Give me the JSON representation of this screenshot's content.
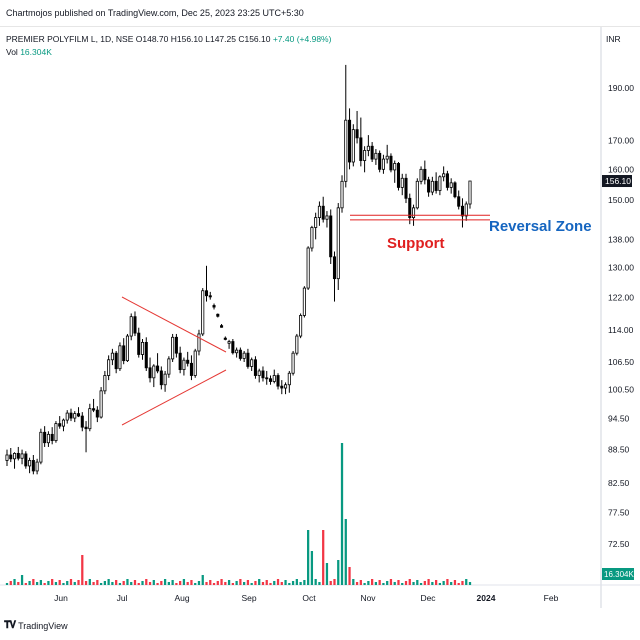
{
  "header": {
    "publisher": "Chartmojos published on TradingView.com, Dec 25, 2023 23:25 UTC+5:30",
    "symbol_line": "PREMIER POLYFILM L, 1D, NSE",
    "ohlc": "O148.70  H156.10  L147.25  C156.10",
    "change": "+7.40 (+4.98%)",
    "vol_label": "Vol",
    "vol_value": "16.304K",
    "currency": "INR"
  },
  "footer": {
    "logo": "TradingView"
  },
  "colors": {
    "up": "#089981",
    "down": "#f23645",
    "vol_up": "#089981",
    "vol_down": "#f23645",
    "support": "#e02020",
    "zone": "#1565c0",
    "triangle": "#e53935"
  },
  "chart_data": {
    "type": "candlestick",
    "price_axis": {
      "scale": "log",
      "ticks": [
        72.5,
        77.5,
        82.5,
        88.5,
        94.5,
        100.5,
        106.5,
        114.0,
        122.0,
        130.0,
        138.0,
        150.0,
        160.0,
        170.0,
        190.0
      ],
      "current_price": "156.10",
      "volume_badge": "16.304K"
    },
    "time_axis": {
      "ticks": [
        "Jun",
        "Jul",
        "Aug",
        "Sep",
        "Oct",
        "Nov",
        "Dec",
        "2024",
        "Feb"
      ]
    },
    "annotations": {
      "support_label": "Support",
      "zone_label": "Reversal Zone"
    },
    "candles": [
      [
        86.5,
        88.5,
        85.5,
        87.5
      ],
      [
        87.5,
        88.8,
        86.2,
        86.8
      ],
      [
        86.8,
        88.0,
        85.0,
        87.8
      ],
      [
        87.8,
        89.0,
        86.5,
        86.9
      ],
      [
        86.9,
        88.5,
        85.8,
        87.7
      ],
      [
        87.7,
        88.2,
        85.0,
        85.5
      ],
      [
        85.5,
        87.0,
        84.2,
        86.5
      ],
      [
        86.5,
        87.5,
        84.0,
        84.6
      ],
      [
        84.6,
        86.8,
        84.0,
        86.2
      ],
      [
        86.2,
        92.5,
        85.8,
        91.8
      ],
      [
        91.8,
        93.0,
        89.0,
        89.8
      ],
      [
        89.8,
        92.0,
        89.0,
        91.4
      ],
      [
        91.4,
        92.8,
        89.5,
        90.2
      ],
      [
        90.2,
        94.0,
        89.8,
        93.5
      ],
      [
        93.5,
        95.0,
        92.5,
        93.0
      ],
      [
        93.0,
        94.5,
        92.0,
        94.2
      ],
      [
        94.2,
        96.2,
        93.5,
        95.6
      ],
      [
        95.6,
        96.5,
        94.0,
        94.6
      ],
      [
        94.6,
        96.0,
        93.8,
        95.5
      ],
      [
        95.5,
        96.8,
        94.8,
        95.0
      ],
      [
        95.0,
        95.8,
        92.0,
        92.8
      ],
      [
        92.8,
        94.0,
        88.0,
        92.5
      ],
      [
        92.5,
        97.5,
        92.0,
        96.5
      ],
      [
        96.5,
        98.5,
        95.8,
        96.2
      ],
      [
        96.2,
        97.0,
        93.8,
        94.8
      ],
      [
        94.8,
        101.0,
        94.5,
        100.2
      ],
      [
        100.2,
        104.5,
        99.5,
        103.5
      ],
      [
        103.5,
        108.0,
        102.5,
        107.0
      ],
      [
        107.0,
        109.5,
        105.8,
        108.5
      ],
      [
        108.5,
        109.0,
        104.0,
        105.0
      ],
      [
        105.0,
        111.0,
        104.5,
        110.2
      ],
      [
        110.2,
        112.0,
        106.0,
        106.8
      ],
      [
        106.8,
        113.0,
        106.5,
        112.5
      ],
      [
        112.5,
        118.0,
        111.5,
        117.2
      ],
      [
        117.2,
        118.5,
        112.5,
        113.2
      ],
      [
        113.2,
        114.5,
        107.5,
        108.2
      ],
      [
        108.2,
        111.8,
        107.0,
        111.0
      ],
      [
        111.0,
        112.2,
        104.5,
        105.2
      ],
      [
        105.2,
        107.5,
        102.0,
        103.0
      ],
      [
        103.0,
        106.0,
        101.0,
        105.6
      ],
      [
        105.6,
        108.5,
        104.0,
        104.5
      ],
      [
        104.5,
        105.5,
        100.5,
        101.5
      ],
      [
        101.5,
        104.5,
        100.0,
        103.8
      ],
      [
        103.8,
        107.8,
        103.0,
        107.2
      ],
      [
        107.2,
        113.0,
        106.5,
        112.2
      ],
      [
        112.2,
        113.0,
        107.5,
        108.5
      ],
      [
        108.5,
        110.0,
        104.0,
        104.8
      ],
      [
        104.8,
        107.5,
        103.5,
        106.9
      ],
      [
        106.9,
        108.8,
        105.5,
        106.2
      ],
      [
        106.2,
        108.0,
        102.5,
        103.5
      ],
      [
        103.5,
        109.5,
        103.0,
        109.0
      ],
      [
        109.0,
        114.0,
        108.0,
        113.0
      ],
      [
        113.0,
        124.5,
        112.5,
        123.8
      ],
      [
        123.8,
        130.5,
        121.0,
        122.5
      ],
      [
        122.5,
        123.5,
        121.5,
        122.2
      ],
      [
        120.0,
        120.5,
        119.0,
        119.6
      ],
      [
        117.8,
        118.0,
        117.0,
        117.3
      ],
      [
        115.0,
        115.4,
        114.5,
        114.6
      ],
      [
        112.0,
        112.4,
        111.5,
        111.7
      ],
      [
        110.8,
        111.6,
        109.5,
        111.2
      ],
      [
        111.2,
        111.8,
        108.2,
        108.6
      ],
      [
        108.6,
        109.8,
        107.5,
        109.2
      ],
      [
        109.2,
        109.8,
        106.8,
        107.3
      ],
      [
        107.3,
        109.0,
        106.5,
        108.5
      ],
      [
        108.5,
        109.5,
        105.0,
        105.5
      ],
      [
        105.5,
        107.5,
        104.5,
        107.0
      ],
      [
        107.0,
        107.8,
        102.8,
        103.5
      ],
      [
        103.5,
        105.0,
        102.0,
        104.5
      ],
      [
        104.5,
        105.5,
        102.2,
        103.0
      ],
      [
        103.0,
        104.5,
        101.5,
        102.8
      ],
      [
        102.8,
        103.5,
        101.5,
        102.2
      ],
      [
        102.2,
        104.8,
        101.8,
        103.5
      ],
      [
        103.5,
        104.0,
        100.5,
        101.2
      ],
      [
        101.2,
        102.5,
        99.5,
        100.8
      ],
      [
        100.8,
        102.0,
        99.5,
        101.5
      ],
      [
        101.5,
        104.5,
        99.8,
        104.0
      ],
      [
        104.0,
        109.0,
        103.5,
        108.5
      ],
      [
        108.5,
        113.0,
        108.0,
        112.5
      ],
      [
        112.5,
        118.0,
        112.0,
        117.5
      ],
      [
        117.5,
        125.0,
        117.0,
        124.5
      ],
      [
        124.5,
        136.0,
        124.0,
        135.5
      ],
      [
        135.5,
        142.0,
        134.5,
        141.5
      ],
      [
        141.5,
        146.0,
        138.0,
        144.5
      ],
      [
        144.5,
        149.5,
        142.0,
        148.0
      ],
      [
        148.0,
        151.0,
        143.0,
        144.0
      ],
      [
        144.0,
        146.5,
        141.5,
        145.0
      ],
      [
        145.0,
        147.0,
        131.0,
        133.0
      ],
      [
        133.0,
        134.5,
        121.0,
        127.0
      ],
      [
        127.0,
        149.0,
        124.0,
        147.5
      ],
      [
        147.5,
        158.0,
        146.0,
        156.0
      ],
      [
        156.0,
        199.5,
        154.0,
        177.5
      ],
      [
        177.5,
        182.0,
        160.0,
        162.5
      ],
      [
        162.5,
        176.0,
        161.0,
        174.0
      ],
      [
        174.0,
        181.0,
        169.0,
        171.0
      ],
      [
        171.0,
        178.5,
        161.0,
        163.0
      ],
      [
        163.0,
        168.0,
        159.0,
        166.5
      ],
      [
        166.5,
        172.0,
        164.5,
        168.0
      ],
      [
        168.0,
        169.5,
        162.5,
        163.5
      ],
      [
        163.5,
        167.0,
        161.5,
        165.5
      ],
      [
        165.5,
        166.5,
        159.0,
        160.0
      ],
      [
        160.0,
        165.0,
        158.5,
        163.5
      ],
      [
        163.5,
        168.5,
        162.0,
        164.5
      ],
      [
        164.5,
        165.5,
        159.0,
        159.8
      ],
      [
        159.8,
        163.0,
        155.5,
        162.0
      ],
      [
        162.0,
        162.5,
        153.0,
        154.0
      ],
      [
        154.0,
        158.5,
        151.5,
        157.0
      ],
      [
        157.0,
        158.5,
        149.0,
        150.5
      ],
      [
        150.5,
        152.0,
        142.5,
        144.5
      ],
      [
        144.5,
        148.5,
        142.0,
        147.5
      ],
      [
        147.5,
        157.0,
        147.0,
        156.0
      ],
      [
        156.0,
        161.0,
        155.0,
        160.0
      ],
      [
        160.0,
        163.0,
        155.0,
        156.5
      ],
      [
        156.5,
        157.5,
        151.0,
        152.5
      ],
      [
        152.5,
        157.5,
        151.5,
        156.0
      ],
      [
        156.0,
        159.0,
        152.0,
        153.0
      ],
      [
        153.0,
        158.0,
        151.5,
        157.5
      ],
      [
        157.5,
        161.0,
        156.0,
        158.5
      ],
      [
        158.5,
        159.5,
        153.0,
        154.0
      ],
      [
        154.0,
        157.0,
        152.0,
        155.5
      ],
      [
        155.5,
        156.0,
        150.5,
        151.0
      ],
      [
        151.0,
        153.0,
        147.0,
        148.0
      ],
      [
        148.0,
        150.5,
        141.5,
        145.0
      ],
      [
        145.0,
        149.5,
        143.5,
        148.7
      ],
      [
        148.7,
        156.1,
        147.25,
        156.1
      ]
    ],
    "volume_up_down_pattern": "follows candle direction"
  }
}
